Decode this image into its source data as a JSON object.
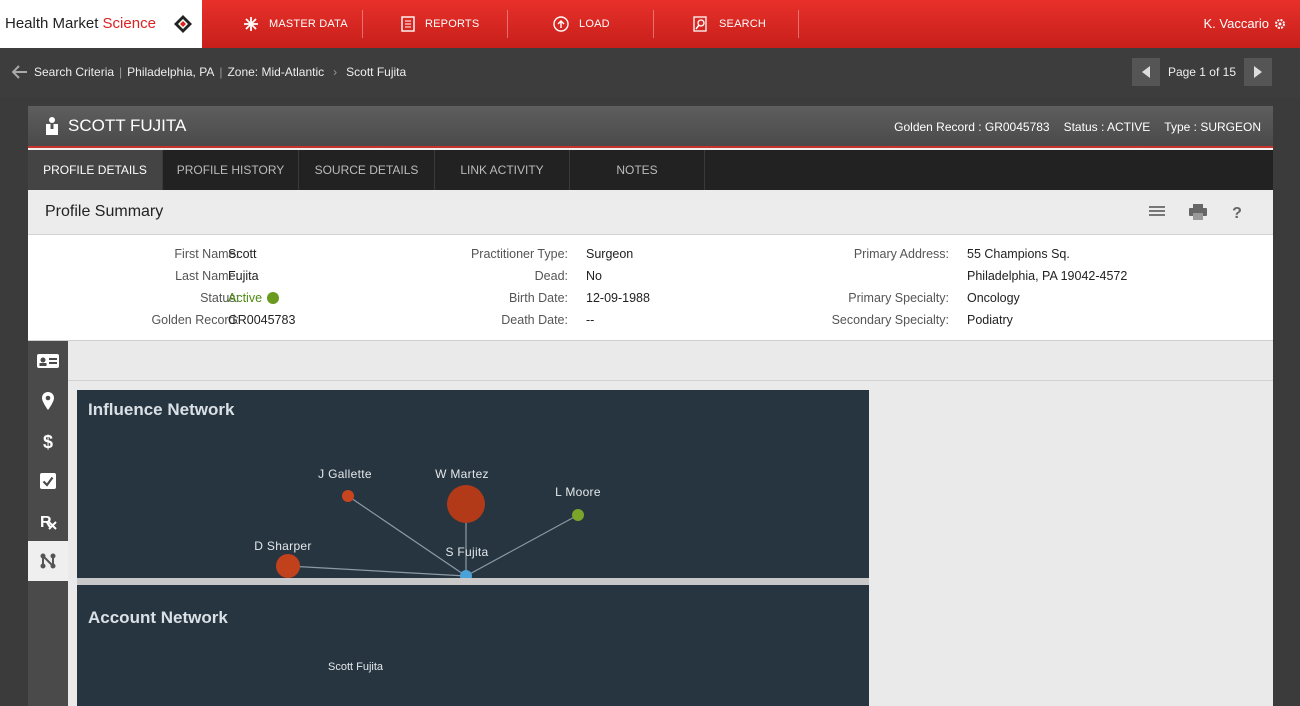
{
  "app": {
    "logo_name": "Health Market ",
    "logo_accent": "Science",
    "nav": [
      {
        "label": "MASTER DATA",
        "icon": "starburst-icon"
      },
      {
        "label": "REPORTS",
        "icon": "report-icon"
      },
      {
        "label": "LOAD",
        "icon": "upload-icon"
      },
      {
        "label": "SEARCH",
        "icon": "search-icon"
      }
    ],
    "user": "K. Vaccario"
  },
  "breadcrumb": {
    "items": [
      "Search Criteria",
      "Philadelphia, PA",
      "Zone: Mid-Atlantic",
      "Scott Fujita"
    ]
  },
  "pager": {
    "label": "Page 1 of 15"
  },
  "profile": {
    "name": "SCOTT FUJITA",
    "golden_record": "Golden Record : GR0045783",
    "status": "Status : ACTIVE",
    "type": "Type : SURGEON"
  },
  "tabs": [
    "PROFILE DETAILS",
    "PROFILE HISTORY",
    "SOURCE DETAILS",
    "LINK ACTIVITY",
    "NOTES"
  ],
  "summary": {
    "title": "Profile Summary",
    "col1": [
      {
        "label": "First Name:",
        "value": "Scott"
      },
      {
        "label": "Last Name:",
        "value": "Fujita"
      },
      {
        "label": "Status:",
        "value": "Active"
      },
      {
        "label": "Golden Record:",
        "value": "GR0045783"
      }
    ],
    "col2": [
      {
        "label": "Practitioner Type:",
        "value": "Surgeon"
      },
      {
        "label": "Dead:",
        "value": "No"
      },
      {
        "label": "Birth Date:",
        "value": "12-09-1988"
      },
      {
        "label": "Death Date:",
        "value": "--"
      }
    ],
    "col3": [
      {
        "label": "Primary Address:",
        "value": "55 Champions Sq."
      },
      {
        "label": "",
        "value": "Philadelphia, PA 19042-4572"
      },
      {
        "label": "Primary Specialty:",
        "value": "Oncology"
      },
      {
        "label": "Secondary Specialty:",
        "value": "Podiatry"
      }
    ]
  },
  "influence_network": {
    "title": "Influence Network",
    "nodes": [
      {
        "name": "J Gallette",
        "color": "#c8451f"
      },
      {
        "name": "W Martez",
        "color": "#b33a18"
      },
      {
        "name": "L Moore",
        "color": "#7aa52a"
      },
      {
        "name": "D Sharper",
        "color": "#c0411c"
      },
      {
        "name": "S Fujita",
        "color": "#4aa3d8"
      }
    ]
  },
  "account_network": {
    "title": "Account Network",
    "partial_label": "Scott Fujita"
  }
}
